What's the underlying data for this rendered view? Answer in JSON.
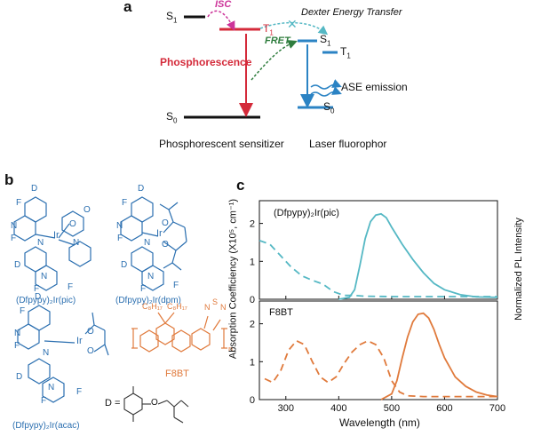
{
  "panel_a": {
    "label": "a",
    "isc": "ISC",
    "dexter": "Dexter Energy Transfer",
    "fret": "FRET",
    "phosphorescence": "Phosphorescence",
    "ase": "ASE emission",
    "sensitizer": "Phosphorescent sensitizer",
    "fluorophor": "Laser fluorophor",
    "s1_left": "S",
    "s1_left_sub": "1",
    "t1_left": "T",
    "t1_left_sub": "1",
    "s0_left": "S",
    "s0_left_sub": "0",
    "s1_right": "S",
    "s1_right_sub": "1",
    "t1_right": "T",
    "t1_right_sub": "1",
    "s0_right": "S",
    "s0_right_sub": "0",
    "colors": {
      "isc": "#cc3399",
      "red": "#d42a3a",
      "blue": "#2b83c4",
      "green": "#2f7d3e",
      "teal": "#55b8c4"
    }
  },
  "panel_b": {
    "label": "b",
    "mol1": "(Dfpypy)₂Ir(pic)",
    "mol2": "(Dfpypy)₂Ir(dpm)",
    "mol3": "(Dfpypy)₂Ir(acac)",
    "mol4": "F8BT",
    "d_eq": "D =",
    "atom_D": "D",
    "atom_F": "F",
    "atom_N": "N",
    "atom_O": "O",
    "atom_Ir": "Ir",
    "atom_S": "S",
    "n_sub": "n",
    "c8h17": "C₈H₁₇",
    "colors": {
      "blue": "#2b6fb0",
      "orange": "#e07a3c"
    }
  },
  "panel_c": {
    "label": "c",
    "legend_top": "(Dfpypy)₂Ir(pic)",
    "legend_bottom": "F8BT",
    "y_left": "Absorption Coefficiency (X10⁵, cm⁻¹)",
    "y_right": "Normalized PL Intensity",
    "x_label": "Wavelength (nm)",
    "x_ticks": [
      "300",
      "400",
      "500",
      "600",
      "700"
    ],
    "y_ticks": [
      "0",
      "1",
      "2"
    ]
  },
  "chart_data": [
    {
      "type": "line",
      "title": "(Dfpypy)₂Ir(pic)",
      "xlabel": "Wavelength (nm)",
      "ylabel": "Absorption Coefficiency (X10⁵, cm⁻¹)",
      "xlim": [
        250,
        700
      ],
      "ylim": [
        0,
        2.6
      ],
      "series": [
        {
          "name": "absorption",
          "style": "dashed",
          "color": "#55b8c4",
          "x": [
            250,
            270,
            290,
            310,
            330,
            350,
            370,
            390,
            410,
            430,
            450,
            500,
            550,
            600,
            650,
            700
          ],
          "y": [
            1.55,
            1.45,
            1.15,
            0.85,
            0.62,
            0.5,
            0.4,
            0.2,
            0.1,
            0.1,
            0.08,
            0.07,
            0.07,
            0.07,
            0.07,
            0.07
          ]
        },
        {
          "name": "PL",
          "style": "solid",
          "color": "#55b8c4",
          "x": [
            400,
            420,
            430,
            440,
            450,
            460,
            470,
            480,
            490,
            500,
            520,
            540,
            560,
            580,
            600,
            630,
            660,
            700
          ],
          "y": [
            0.0,
            0.05,
            0.25,
            0.9,
            1.6,
            2.05,
            2.22,
            2.25,
            2.15,
            1.9,
            1.45,
            1.05,
            0.7,
            0.42,
            0.25,
            0.12,
            0.06,
            0.05
          ]
        }
      ]
    },
    {
      "type": "line",
      "title": "F8BT",
      "xlabel": "Wavelength (nm)",
      "ylabel": "Absorption Coefficiency (X10⁵, cm⁻¹)",
      "xlim": [
        250,
        700
      ],
      "ylim": [
        0,
        2.6
      ],
      "series": [
        {
          "name": "absorption",
          "style": "dashed",
          "color": "#e07a3c",
          "x": [
            260,
            275,
            290,
            305,
            320,
            335,
            350,
            365,
            380,
            395,
            410,
            425,
            440,
            455,
            470,
            485,
            500,
            515,
            530,
            560,
            600,
            650,
            700
          ],
          "y": [
            0.55,
            0.45,
            0.75,
            1.3,
            1.55,
            1.45,
            1.0,
            0.6,
            0.45,
            0.6,
            0.95,
            1.25,
            1.45,
            1.55,
            1.45,
            1.1,
            0.5,
            0.2,
            0.1,
            0.08,
            0.08,
            0.08,
            0.08
          ]
        },
        {
          "name": "PL",
          "style": "solid",
          "color": "#e07a3c",
          "x": [
            480,
            500,
            510,
            520,
            530,
            540,
            550,
            560,
            570,
            580,
            590,
            600,
            620,
            640,
            660,
            680,
            700
          ],
          "y": [
            0.0,
            0.15,
            0.5,
            1.1,
            1.65,
            2.05,
            2.25,
            2.28,
            2.15,
            1.85,
            1.45,
            1.1,
            0.6,
            0.35,
            0.2,
            0.12,
            0.08
          ]
        }
      ]
    }
  ]
}
